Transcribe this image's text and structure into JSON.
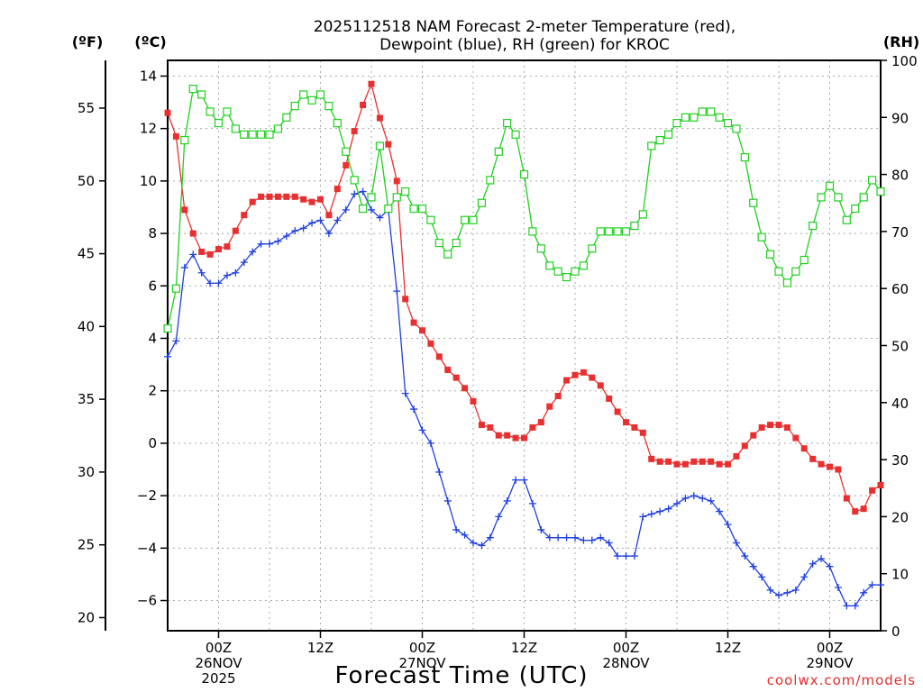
{
  "chart_data": {
    "type": "line",
    "title_line1": "2025112518 NAM Forecast 2-meter Temperature (red),",
    "title_line2": "Dewpoint (blue), RH (green) for KROC",
    "unit_left_f": "(ºF)",
    "unit_left_c": "(ºC)",
    "unit_right": "(RH)",
    "xlabel": "Forecast Time (UTC)",
    "credit": "coolwx.com/models",
    "x_range_hours": [
      0,
      84
    ],
    "c_range": [
      -7.15,
      14.6
    ],
    "f_range": [
      19.1,
      58.28
    ],
    "rh_range": [
      0,
      100
    ],
    "c_ticks": [
      -6,
      -4,
      -2,
      0,
      2,
      4,
      6,
      8,
      10,
      12,
      14
    ],
    "f_ticks": [
      20,
      25,
      30,
      35,
      40,
      45,
      50,
      55
    ],
    "rh_ticks": [
      0,
      10,
      20,
      30,
      40,
      50,
      60,
      70,
      80,
      90,
      100
    ],
    "x_ticks": [
      {
        "hour": 6,
        "lines": [
          "00Z",
          "26NOV",
          "2025"
        ]
      },
      {
        "hour": 18,
        "lines": [
          "12Z"
        ]
      },
      {
        "hour": 30,
        "lines": [
          "00Z",
          "27NOV"
        ]
      },
      {
        "hour": 42,
        "lines": [
          "12Z"
        ]
      },
      {
        "hour": 54,
        "lines": [
          "00Z",
          "28NOV"
        ]
      },
      {
        "hour": 66,
        "lines": [
          "12Z"
        ]
      },
      {
        "hour": 78,
        "lines": [
          "00Z",
          "29NOV"
        ]
      }
    ],
    "grid": true,
    "series": [
      {
        "name": "Temperature",
        "color": "#e83030",
        "axis": "c",
        "marker": "filled-square",
        "values": [
          12.6,
          11.7,
          8.9,
          8.0,
          7.3,
          7.2,
          7.4,
          7.5,
          8.1,
          8.7,
          9.2,
          9.4,
          9.4,
          9.4,
          9.4,
          9.4,
          9.3,
          9.2,
          9.3,
          8.7,
          9.7,
          10.6,
          11.9,
          12.9,
          13.7,
          12.4,
          11.4,
          10.0,
          5.5,
          4.6,
          4.3,
          3.8,
          3.3,
          2.8,
          2.5,
          2.1,
          1.6,
          0.7,
          0.6,
          0.3,
          0.3,
          0.2,
          0.2,
          0.6,
          0.8,
          1.4,
          1.8,
          2.4,
          2.6,
          2.7,
          2.5,
          2.2,
          1.7,
          1.2,
          0.8,
          0.6,
          0.4,
          -0.6,
          -0.7,
          -0.7,
          -0.8,
          -0.8,
          -0.7,
          -0.7,
          -0.7,
          -0.8,
          -0.8,
          -0.5,
          -0.1,
          0.3,
          0.6,
          0.7,
          0.7,
          0.6,
          0.2,
          -0.2,
          -0.6,
          -0.8,
          -0.9,
          -1.0,
          -2.1,
          -2.6,
          -2.5,
          -1.8,
          -1.6
        ]
      },
      {
        "name": "Dewpoint",
        "color": "#2040e0",
        "axis": "c",
        "marker": "plus",
        "values": [
          3.3,
          3.9,
          6.7,
          7.2,
          6.5,
          6.1,
          6.1,
          6.4,
          6.5,
          6.9,
          7.3,
          7.6,
          7.6,
          7.7,
          7.9,
          8.1,
          8.2,
          8.4,
          8.5,
          8.0,
          8.5,
          8.9,
          9.5,
          9.6,
          8.9,
          8.6,
          8.9,
          5.8,
          1.9,
          1.3,
          0.5,
          0.0,
          -1.1,
          -2.2,
          -3.3,
          -3.5,
          -3.8,
          -3.9,
          -3.6,
          -2.8,
          -2.2,
          -1.4,
          -1.4,
          -2.3,
          -3.3,
          -3.6,
          -3.6,
          -3.6,
          -3.6,
          -3.7,
          -3.7,
          -3.6,
          -3.8,
          -4.3,
          -4.3,
          -4.3,
          -2.8,
          -2.7,
          -2.6,
          -2.5,
          -2.3,
          -2.1,
          -2.0,
          -2.1,
          -2.2,
          -2.6,
          -3.1,
          -3.8,
          -4.3,
          -4.7,
          -5.1,
          -5.6,
          -5.8,
          -5.7,
          -5.6,
          -5.1,
          -4.6,
          -4.4,
          -4.7,
          -5.5,
          -6.2,
          -6.2,
          -5.7,
          -5.4,
          -5.4
        ]
      },
      {
        "name": "RH",
        "color": "#20d020",
        "axis": "rh",
        "marker": "open-square",
        "values": [
          53,
          60,
          86,
          95,
          94,
          91,
          89,
          91,
          88,
          87,
          87,
          87,
          87,
          88,
          90,
          92,
          94,
          93,
          94,
          92,
          89,
          84,
          79,
          74,
          76,
          85,
          74,
          76,
          77,
          74,
          74,
          72,
          68,
          66,
          68,
          72,
          72,
          75,
          79,
          84,
          89,
          87,
          80,
          70,
          67,
          64,
          63,
          62,
          63,
          64,
          67,
          70,
          70,
          70,
          70,
          71,
          73,
          85,
          86,
          87,
          89,
          90,
          90,
          91,
          91,
          90,
          89,
          88,
          83,
          75,
          69,
          66,
          63,
          61,
          63,
          65,
          71,
          76,
          78,
          76,
          72,
          74,
          76,
          79,
          77
        ]
      }
    ]
  }
}
